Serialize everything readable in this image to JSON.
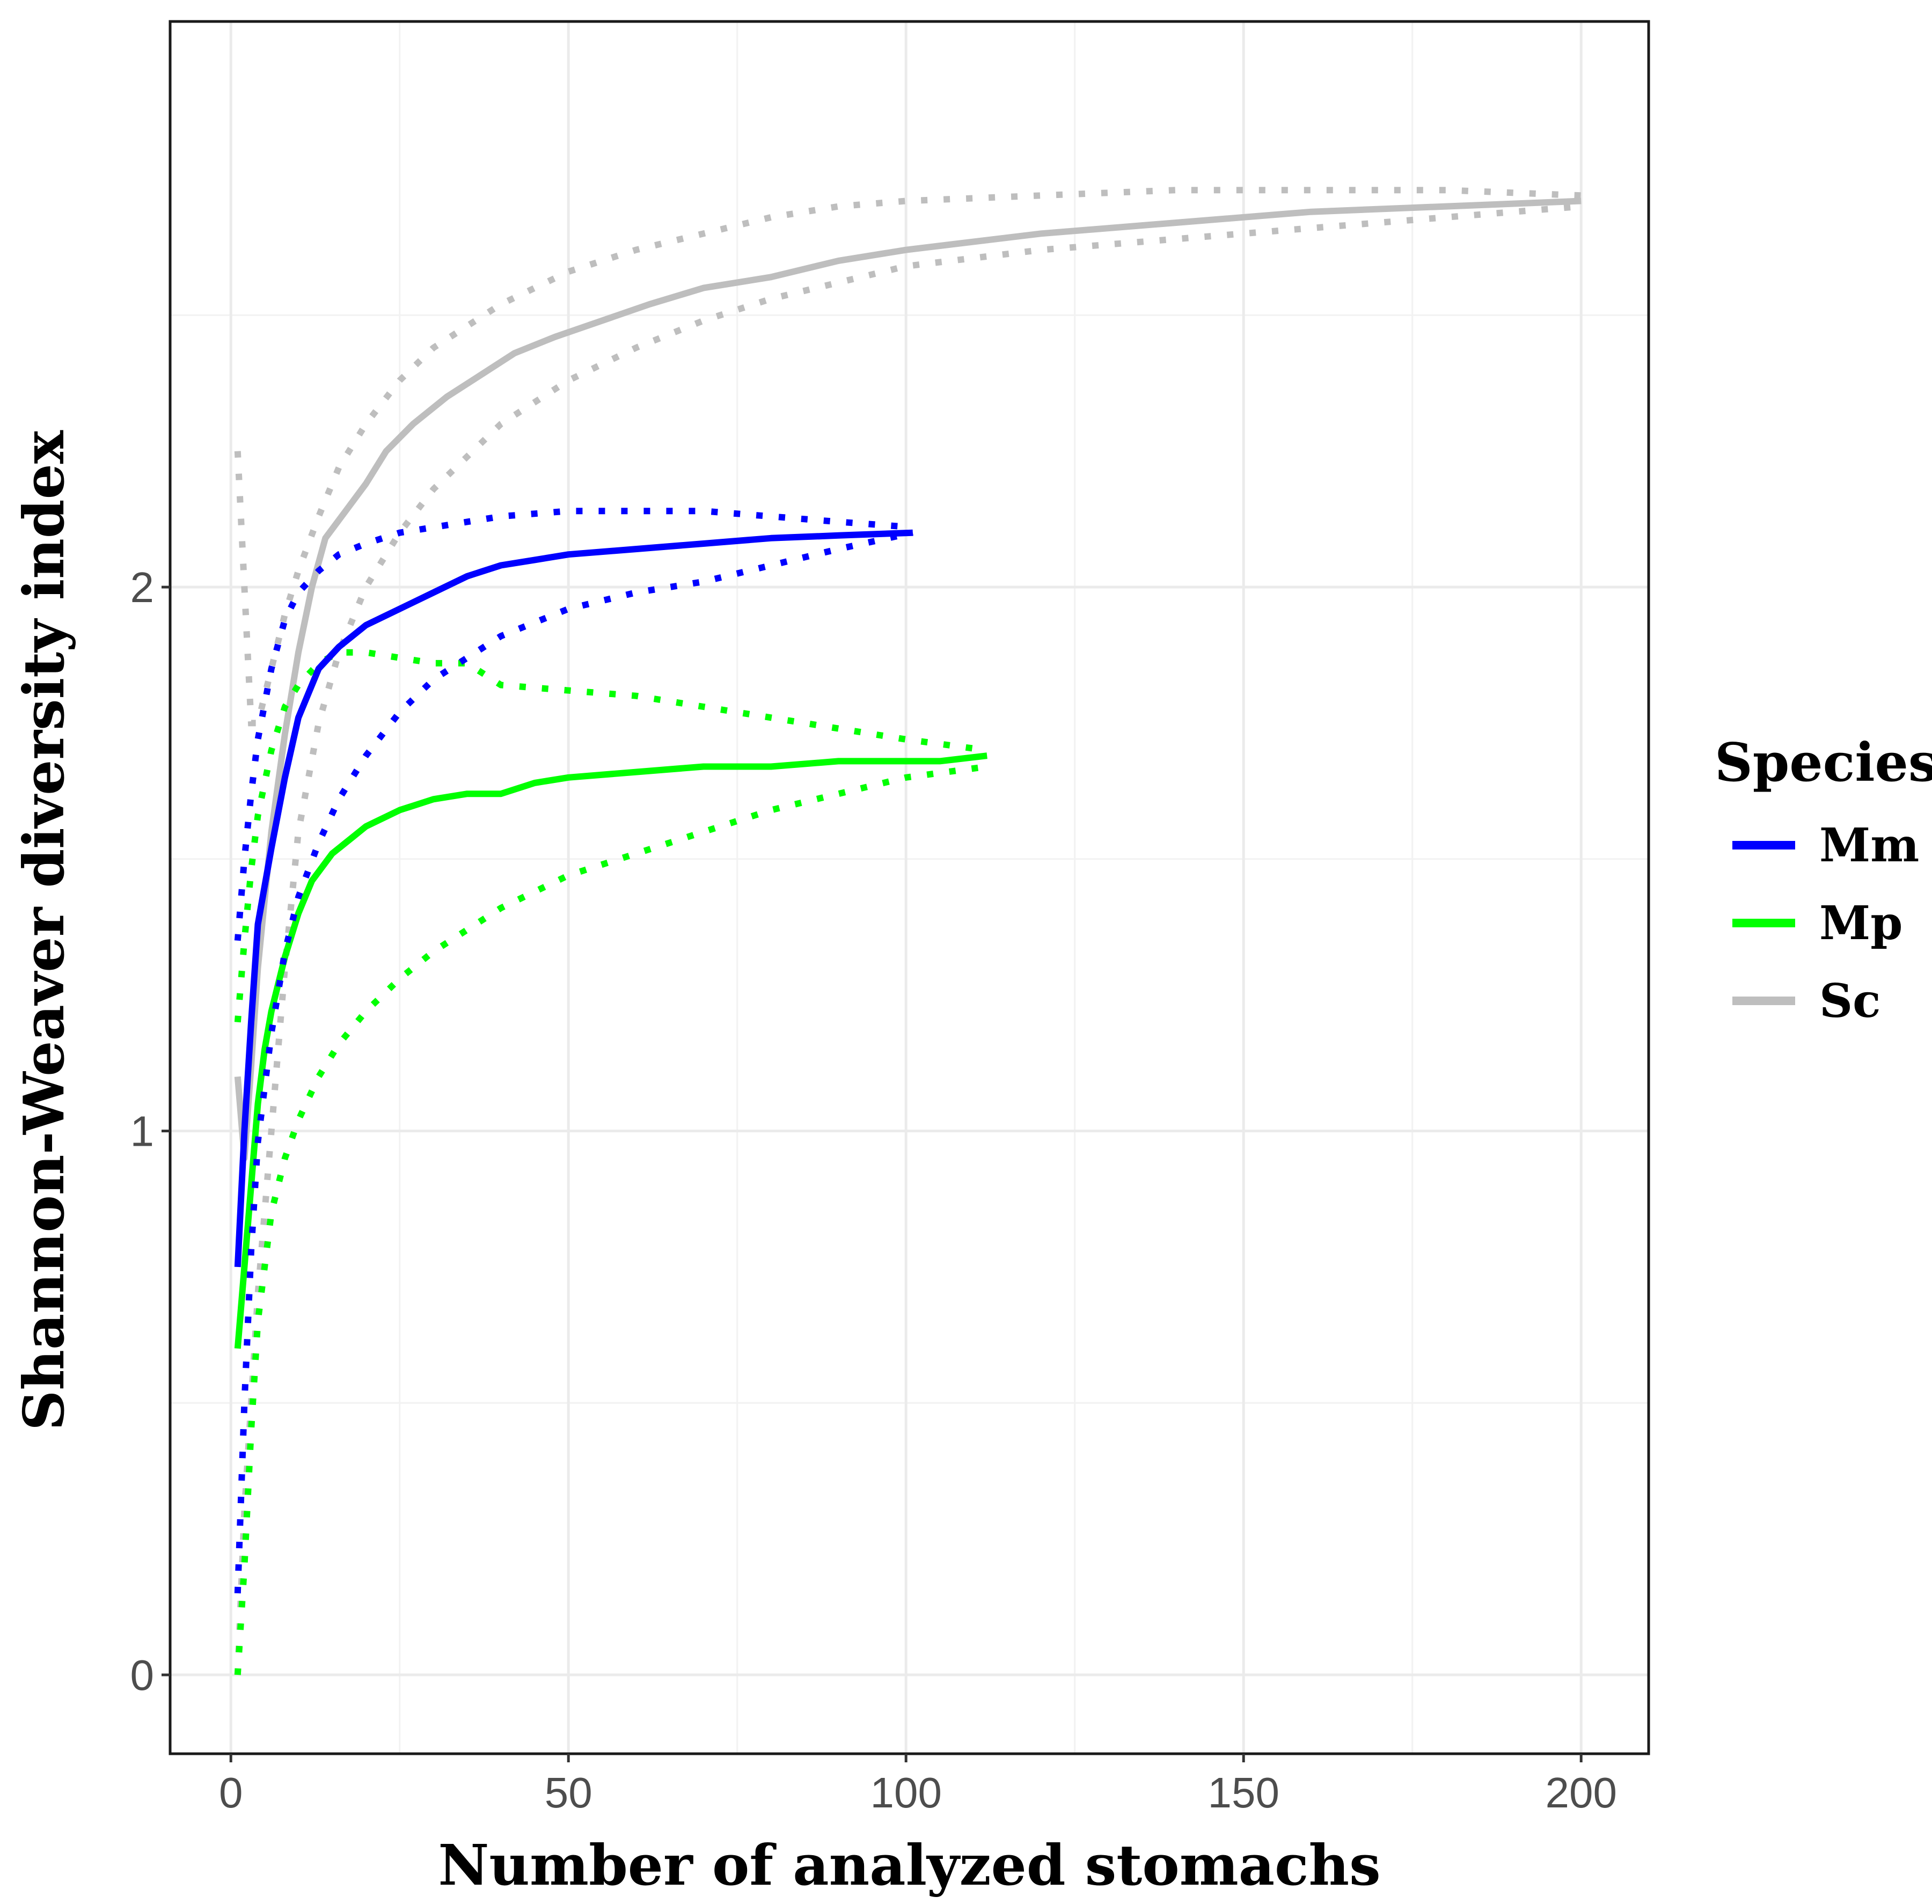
{
  "chart_data": {
    "type": "line",
    "title": "",
    "xlabel": "Number of analyzed stomachs",
    "ylabel": "Shannon-Weaver diversity index",
    "xlim": [
      -9,
      210
    ],
    "ylim": [
      -0.145,
      3.04
    ],
    "x_ticks": [
      0,
      50,
      100,
      150,
      200
    ],
    "y_ticks": [
      0,
      1,
      2
    ],
    "x_tick_labels": [
      "0",
      "50",
      "100",
      "150",
      "200"
    ],
    "y_tick_labels": [
      "0",
      "1",
      "2"
    ],
    "grid": true,
    "legend": {
      "title": "Species",
      "position": "right",
      "entries": [
        {
          "label": "Mm",
          "color": "#0000ff"
        },
        {
          "label": "Mp",
          "color": "#00ff00"
        },
        {
          "label": "Sc",
          "color": "#bebebe"
        }
      ]
    },
    "series": [
      {
        "name": "Mm",
        "color": "#0000ff",
        "mean": {
          "x": [
            1,
            2,
            3,
            4,
            6,
            8,
            10,
            13,
            16,
            20,
            25,
            30,
            35,
            40,
            45,
            50,
            60,
            70,
            80,
            90,
            101
          ],
          "y": [
            0.75,
            1.0,
            1.2,
            1.38,
            1.52,
            1.65,
            1.76,
            1.85,
            1.89,
            1.93,
            1.96,
            1.99,
            2.02,
            2.04,
            2.05,
            2.06,
            2.07,
            2.08,
            2.09,
            2.095,
            2.1
          ]
        },
        "upper": {
          "x": [
            1,
            2,
            3,
            4,
            6,
            8,
            10,
            13,
            16,
            20,
            25,
            30,
            40,
            50,
            60,
            70,
            80,
            90,
            101
          ],
          "y": [
            1.35,
            1.5,
            1.62,
            1.72,
            1.85,
            1.94,
            1.99,
            2.03,
            2.06,
            2.08,
            2.1,
            2.11,
            2.13,
            2.14,
            2.14,
            2.14,
            2.13,
            2.12,
            2.11
          ]
        },
        "lower": {
          "x": [
            1,
            2,
            3,
            4,
            6,
            8,
            10,
            13,
            16,
            20,
            25,
            30,
            40,
            50,
            60,
            70,
            80,
            90,
            101
          ],
          "y": [
            0.15,
            0.5,
            0.78,
            0.98,
            1.18,
            1.33,
            1.43,
            1.53,
            1.61,
            1.69,
            1.77,
            1.83,
            1.91,
            1.96,
            1.99,
            2.01,
            2.04,
            2.07,
            2.1
          ]
        }
      },
      {
        "name": "Mp",
        "color": "#00ff00",
        "mean": {
          "x": [
            1,
            2,
            3,
            4,
            5,
            6,
            8,
            10,
            12,
            15,
            18,
            20,
            25,
            30,
            35,
            40,
            45,
            50,
            60,
            70,
            80,
            90,
            100,
            105,
            112
          ],
          "y": [
            0.6,
            0.75,
            0.9,
            1.05,
            1.15,
            1.22,
            1.32,
            1.4,
            1.46,
            1.51,
            1.54,
            1.56,
            1.59,
            1.61,
            1.62,
            1.62,
            1.64,
            1.65,
            1.66,
            1.67,
            1.67,
            1.68,
            1.68,
            1.68,
            1.69
          ]
        },
        "upper": {
          "x": [
            1,
            2,
            3,
            4,
            6,
            8,
            10,
            13,
            16,
            20,
            25,
            30,
            35,
            40,
            50,
            60,
            70,
            80,
            90,
            100,
            112
          ],
          "y": [
            1.2,
            1.35,
            1.48,
            1.58,
            1.7,
            1.78,
            1.82,
            1.86,
            1.88,
            1.88,
            1.87,
            1.86,
            1.86,
            1.82,
            1.81,
            1.8,
            1.78,
            1.76,
            1.74,
            1.72,
            1.7
          ]
        },
        "lower": {
          "x": [
            1,
            2,
            3,
            4,
            6,
            8,
            10,
            13,
            16,
            20,
            25,
            30,
            40,
            50,
            60,
            70,
            80,
            90,
            100,
            112
          ],
          "y": [
            0.0,
            0.2,
            0.45,
            0.65,
            0.85,
            0.95,
            1.02,
            1.1,
            1.16,
            1.22,
            1.28,
            1.33,
            1.41,
            1.47,
            1.51,
            1.55,
            1.59,
            1.62,
            1.65,
            1.67
          ]
        }
      },
      {
        "name": "Sc",
        "color": "#bebebe",
        "mean": {
          "x": [
            1,
            2,
            3,
            4,
            6,
            8,
            10,
            12,
            14,
            17,
            20,
            23,
            27,
            32,
            37,
            42,
            48,
            55,
            62,
            70,
            80,
            90,
            100,
            120,
            140,
            160,
            180,
            200
          ],
          "y": [
            1.1,
            0.95,
            1.12,
            1.3,
            1.55,
            1.73,
            1.88,
            2.0,
            2.09,
            2.14,
            2.19,
            2.25,
            2.3,
            2.35,
            2.39,
            2.43,
            2.46,
            2.49,
            2.52,
            2.55,
            2.57,
            2.6,
            2.62,
            2.65,
            2.67,
            2.69,
            2.7,
            2.71
          ]
        },
        "upper": {
          "x": [
            1,
            2,
            3,
            4,
            6,
            8,
            10,
            13,
            16,
            20,
            25,
            30,
            40,
            50,
            60,
            70,
            80,
            90,
            100,
            120,
            140,
            160,
            180,
            200
          ],
          "y": [
            2.25,
            2.0,
            1.75,
            1.75,
            1.85,
            1.95,
            2.03,
            2.13,
            2.22,
            2.3,
            2.38,
            2.44,
            2.52,
            2.58,
            2.62,
            2.65,
            2.68,
            2.7,
            2.71,
            2.72,
            2.73,
            2.73,
            2.73,
            2.72
          ]
        },
        "lower": {
          "x": [
            1,
            2,
            3,
            4,
            6,
            8,
            10,
            13,
            16,
            20,
            25,
            30,
            40,
            50,
            60,
            70,
            80,
            90,
            100,
            120,
            140,
            160,
            180,
            200
          ],
          "y": [
            0.0,
            0.3,
            0.5,
            0.7,
            1.0,
            1.3,
            1.55,
            1.75,
            1.88,
            2.0,
            2.1,
            2.18,
            2.3,
            2.38,
            2.44,
            2.49,
            2.53,
            2.56,
            2.59,
            2.62,
            2.64,
            2.66,
            2.68,
            2.7
          ]
        }
      }
    ]
  }
}
